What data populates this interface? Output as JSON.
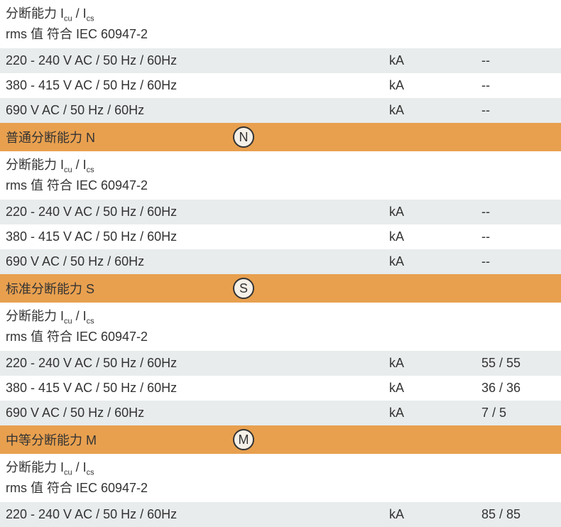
{
  "colors": {
    "row_alt": "#e8eced",
    "row_white": "#ffffff",
    "header_orange": "#e8a04f",
    "text": "#333333",
    "icon_border": "#333333",
    "icon_bg": "#f5f0e8"
  },
  "sections": [
    {
      "header_partial": true,
      "subheader_line1_prefix": "分断能力 I",
      "subheader_line1_sub1": "cu",
      "subheader_line1_mid": " / I",
      "subheader_line1_sub2": "cs",
      "subheader_line2": "rms 值 符合 IEC 60947-2",
      "rows": [
        {
          "label": "220 - 240 V AC / 50 Hz / 60Hz",
          "unit": "kA",
          "value": "--",
          "bg": "gray"
        },
        {
          "label": "380 - 415 V AC / 50 Hz / 60Hz",
          "unit": "kA",
          "value": "--",
          "bg": "white"
        },
        {
          "label": "690 V AC / 50 Hz / 60Hz",
          "unit": "kA",
          "value": "--",
          "bg": "gray"
        }
      ]
    },
    {
      "title": "普通分断能力 N",
      "icon_letter": "N",
      "subheader_line1_prefix": "分断能力 I",
      "subheader_line1_sub1": "cu",
      "subheader_line1_mid": " / I",
      "subheader_line1_sub2": "cs",
      "subheader_line2": "rms 值 符合 IEC 60947-2",
      "rows": [
        {
          "label": "220 - 240 V AC / 50 Hz / 60Hz",
          "unit": "kA",
          "value": "--",
          "bg": "gray"
        },
        {
          "label": "380 - 415 V AC / 50 Hz / 60Hz",
          "unit": "kA",
          "value": "--",
          "bg": "white"
        },
        {
          "label": "690 V AC / 50 Hz / 60Hz",
          "unit": "kA",
          "value": "--",
          "bg": "gray"
        }
      ]
    },
    {
      "title": "标准分断能力 S",
      "icon_letter": "S",
      "subheader_line1_prefix": "分断能力 I",
      "subheader_line1_sub1": "cu",
      "subheader_line1_mid": " / I",
      "subheader_line1_sub2": "cs",
      "subheader_line2": "rms 值 符合 IEC 60947-2",
      "rows": [
        {
          "label": "220 - 240 V AC / 50 Hz / 60Hz",
          "unit": "kA",
          "value": "55 / 55",
          "bg": "gray"
        },
        {
          "label": "380 - 415 V AC / 50 Hz / 60Hz",
          "unit": "kA",
          "value": "36 / 36",
          "bg": "white"
        },
        {
          "label": "690 V AC / 50 Hz / 60Hz",
          "unit": "kA",
          "value": "7 / 5",
          "bg": "gray"
        }
      ]
    },
    {
      "title": "中等分断能力 M",
      "icon_letter": "M",
      "subheader_line1_prefix": "分断能力 I",
      "subheader_line1_sub1": "cu",
      "subheader_line1_mid": " / I",
      "subheader_line1_sub2": "cs",
      "subheader_line2": "rms 值 符合 IEC 60947-2",
      "rows": [
        {
          "label": "220 - 240 V AC / 50 Hz / 60Hz",
          "unit": "kA",
          "value": "85 / 85",
          "bg": "gray"
        }
      ]
    }
  ]
}
